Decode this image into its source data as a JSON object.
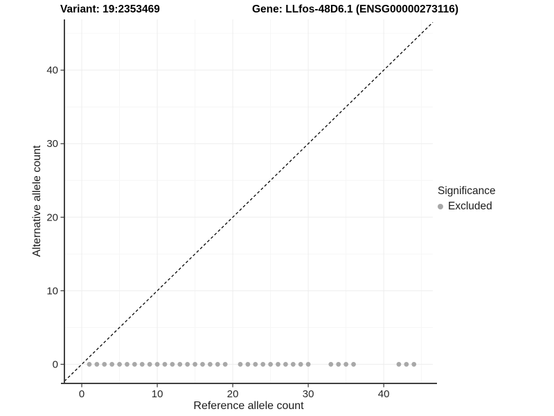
{
  "titles": {
    "variant": "Variant: 19:2353469",
    "gene": "Gene: LLfos-48D6.1 (ENSG00000273116)"
  },
  "colors": {
    "points": "#a8a8a8",
    "identity_line": "#000000",
    "axis_line": "#404040",
    "tick_mark": "#333333",
    "tick_label": "#262626",
    "grid_major": "#ededed",
    "grid_minor": "#f6f6f6",
    "background": "#ffffff"
  },
  "chart_data": {
    "type": "scatter",
    "title": "",
    "xlabel": "Reference allele count",
    "ylabel": "Alternative allele count",
    "x_ticks": [
      0,
      10,
      20,
      30,
      40
    ],
    "y_ticks": [
      0,
      10,
      20,
      30,
      40
    ],
    "xlim": [
      -2.3,
      46.5
    ],
    "ylim": [
      -2.6,
      46.9
    ],
    "grid": "major and minor gridlines, very light gray, white background",
    "reference_line": {
      "kind": "abline",
      "slope": 1,
      "intercept": 0,
      "linetype": "dashed",
      "color": "#000000"
    },
    "series": [
      {
        "name": "Excluded",
        "color": "#a8a8a8",
        "y": 0,
        "x": [
          1,
          2,
          3,
          4,
          5,
          6,
          7,
          8,
          9,
          10,
          11,
          12,
          13,
          14,
          15,
          16,
          17,
          18,
          19,
          21,
          22,
          23,
          24,
          25,
          26,
          27,
          28,
          29,
          30,
          33,
          34,
          35,
          36,
          42,
          43,
          44
        ]
      }
    ],
    "legend": {
      "title": "Significance",
      "position": "right",
      "items": [
        {
          "label": "Excluded",
          "color": "#a8a8a8"
        }
      ]
    }
  }
}
